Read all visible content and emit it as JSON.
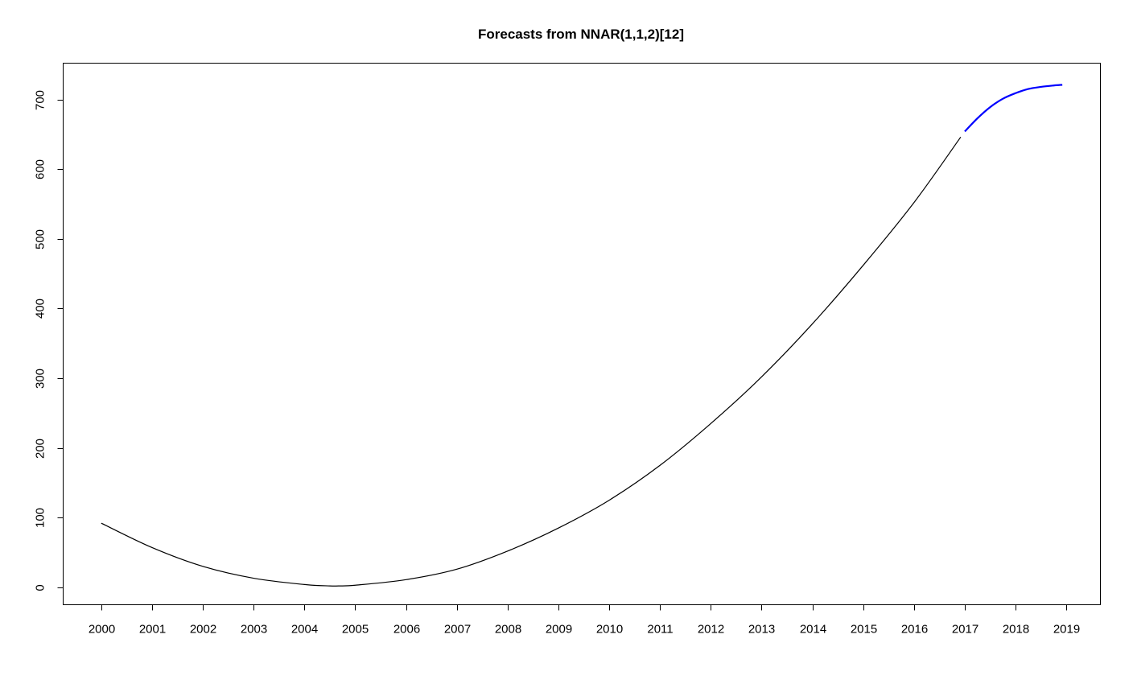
{
  "chart_data": {
    "type": "line",
    "title": "Forecasts from NNAR(1,1,2)[12]",
    "xlabel": "",
    "ylabel": "",
    "xlim": [
      1999.25,
      2019.67
    ],
    "ylim": [
      -25,
      752
    ],
    "x_ticks": [
      2000,
      2001,
      2002,
      2003,
      2004,
      2005,
      2006,
      2007,
      2008,
      2009,
      2010,
      2011,
      2012,
      2013,
      2014,
      2015,
      2016,
      2017,
      2018,
      2019
    ],
    "x_tick_labels": [
      "2000",
      "2001",
      "2002",
      "2003",
      "2004",
      "2005",
      "2006",
      "2007",
      "2008",
      "2009",
      "2010",
      "2011",
      "2012",
      "2013",
      "2014",
      "2015",
      "2016",
      "2017",
      "2018",
      "2019"
    ],
    "y_ticks": [
      0,
      100,
      200,
      300,
      400,
      500,
      600,
      700
    ],
    "y_tick_labels": [
      "0",
      "100",
      "200",
      "300",
      "400",
      "500",
      "600",
      "700"
    ],
    "grid": false,
    "legend": "none",
    "series": [
      {
        "role": "observed",
        "color": "#000000",
        "x": [
          2000.0,
          2001.0,
          2002.0,
          2003.0,
          2004.0,
          2004.5,
          2004.67,
          2005.0,
          2006.0,
          2007.0,
          2008.0,
          2009.0,
          2010.0,
          2011.0,
          2012.0,
          2013.0,
          2014.0,
          2015.0,
          2016.0,
          2016.92
        ],
        "values": [
          92,
          57,
          30,
          13,
          4,
          2,
          2,
          3,
          11,
          26,
          52,
          85,
          125,
          175,
          235,
          302,
          378,
          462,
          552,
          646
        ]
      },
      {
        "role": "forecast",
        "color": "#0000ff",
        "x": [
          2017.0,
          2017.25,
          2017.5,
          2017.75,
          2018.0,
          2018.25,
          2018.5,
          2018.75,
          2018.92
        ],
        "values": [
          654,
          673,
          689,
          701,
          709,
          715,
          718,
          720,
          721
        ]
      }
    ]
  }
}
